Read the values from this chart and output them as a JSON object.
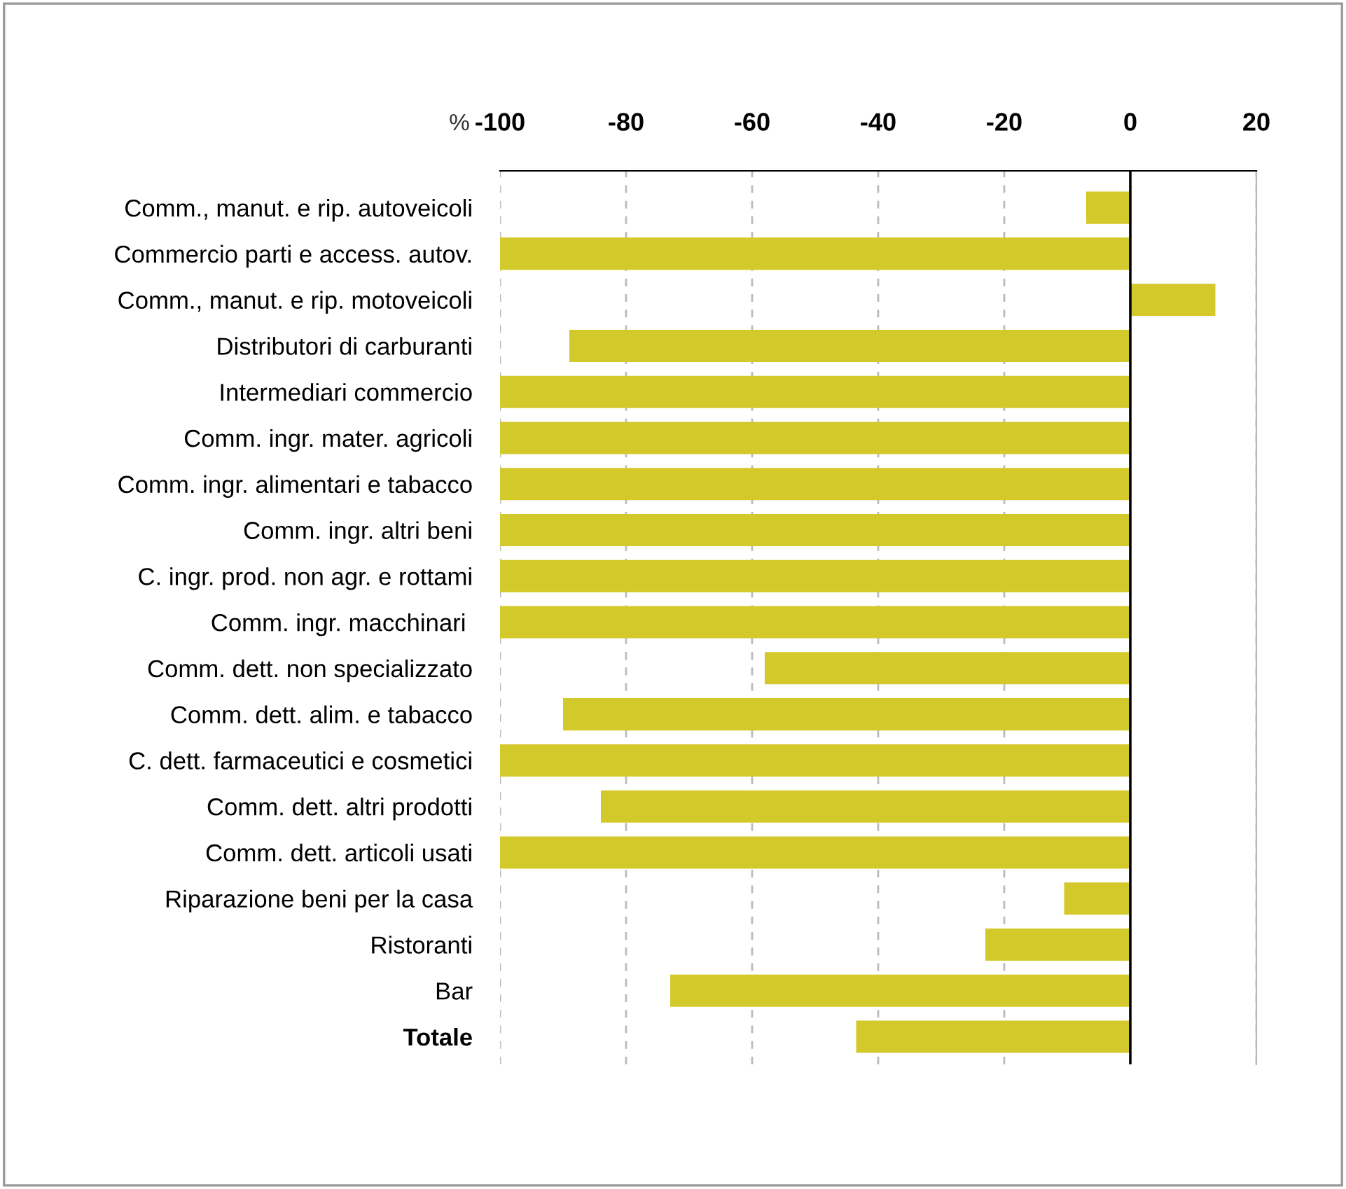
{
  "chart_data": {
    "type": "bar",
    "orientation": "horizontal",
    "xlabel": "%",
    "categories": [
      "Comm., manut. e rip. autoveicoli",
      "Commercio parti e access. autov.",
      "Comm., manut. e rip. motoveicoli",
      "Distributori di carburanti",
      "Intermediari commercio",
      "Comm. ingr. mater. agricoli",
      "Comm. ingr. alimentari e tabacco",
      "Comm. ingr. altri beni",
      "C. ingr. prod. non agr. e rottami",
      "Comm. ingr. macchinari ",
      "Comm. dett. non specializzato",
      "Comm. dett. alim. e tabacco",
      "C. dett. farmaceutici e cosmetici",
      "Comm. dett. altri prodotti",
      "Comm. dett. articoli usati",
      "Riparazione beni per la casa",
      "Ristoranti",
      "Bar",
      "Totale"
    ],
    "values": [
      -7,
      -100,
      13.5,
      -89,
      -100,
      -100,
      -100,
      -100,
      -100,
      -100,
      -58,
      -90,
      -100,
      -84,
      -100,
      -10.5,
      -23,
      -73,
      -43.5
    ],
    "color": "#d4c92b",
    "xlim": [
      -100,
      20
    ],
    "xticks": [
      -100,
      -80,
      -60,
      -40,
      -20,
      0,
      20
    ],
    "grid": "x",
    "ref_lines": [
      {
        "axis": "x",
        "value": 0,
        "color": "#000000",
        "line_style": "solid"
      }
    ]
  }
}
